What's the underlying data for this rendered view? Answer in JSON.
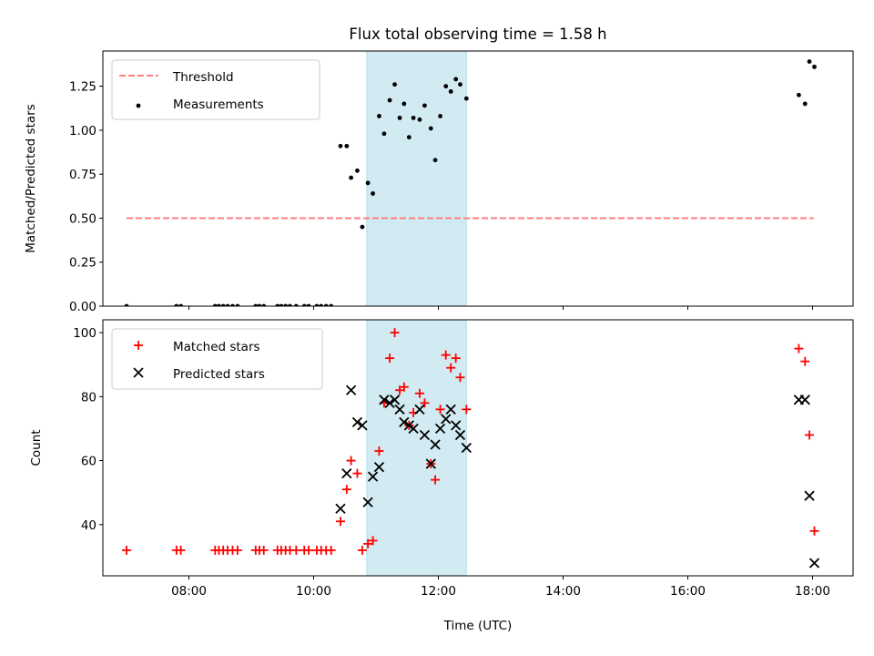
{
  "chart_data": [
    {
      "type": "scatter",
      "title": "Flux total observing time = 1.58 h",
      "xlabel": "",
      "ylabel": "Matched/Predicted stars",
      "xlim": [
        6.62,
        18.65
      ],
      "ylim": [
        0.0,
        1.45
      ],
      "yticks": [
        0.0,
        0.25,
        0.5,
        0.75,
        1.0,
        1.25
      ],
      "ytick_labels": [
        "0.00",
        "0.25",
        "0.50",
        "0.75",
        "1.00",
        "1.25"
      ],
      "xticks": [
        8,
        10,
        12,
        14,
        16,
        18
      ],
      "xtick_labels": [
        "",
        "",
        "",
        "",
        "",
        ""
      ],
      "shaded_region": {
        "x_start": 10.85,
        "x_end": 12.45,
        "color": "#add8e6"
      },
      "legend_placement": "upper left",
      "series": [
        {
          "name": "Threshold",
          "style": "dashed-line",
          "color": "#ff7f7f",
          "x": [
            7.0,
            18.02
          ],
          "y": [
            0.5,
            0.5
          ]
        },
        {
          "name": "Measurements",
          "style": "dot",
          "color": "#000000",
          "x": [
            7.0,
            7.8,
            7.87,
            8.42,
            8.48,
            8.55,
            8.62,
            8.7,
            8.78,
            9.07,
            9.13,
            9.2,
            9.42,
            9.48,
            9.55,
            9.62,
            9.72,
            9.85,
            9.92,
            10.05,
            10.12,
            10.2,
            10.28,
            10.43,
            10.53,
            10.6,
            10.7,
            10.78,
            10.87,
            10.95,
            11.05,
            11.13,
            11.22,
            11.3,
            11.38,
            11.45,
            11.53,
            11.6,
            11.7,
            11.78,
            11.88,
            11.95,
            12.03,
            12.12,
            12.2,
            12.28,
            12.35,
            12.45,
            17.78,
            17.88,
            17.95,
            18.03
          ],
          "y": [
            0.0,
            0.0,
            0.0,
            0.0,
            0.0,
            0.0,
            0.0,
            0.0,
            0.0,
            0.0,
            0.0,
            0.0,
            0.0,
            0.0,
            0.0,
            0.0,
            0.0,
            0.0,
            0.0,
            0.0,
            0.0,
            0.0,
            0.0,
            0.91,
            0.91,
            0.73,
            0.77,
            0.45,
            0.7,
            0.64,
            1.08,
            0.98,
            1.17,
            1.26,
            1.07,
            1.15,
            0.96,
            1.07,
            1.06,
            1.14,
            1.01,
            0.83,
            1.08,
            1.25,
            1.22,
            1.29,
            1.26,
            1.18,
            1.2,
            1.15,
            1.39,
            1.36
          ]
        }
      ]
    },
    {
      "type": "scatter",
      "title": "",
      "xlabel": "Time (UTC)",
      "ylabel": "Count",
      "xlim": [
        6.62,
        18.65
      ],
      "ylim": [
        24.0,
        104.0
      ],
      "yticks": [
        40,
        60,
        80,
        100
      ],
      "ytick_labels": [
        "40",
        "60",
        "80",
        "100"
      ],
      "xticks": [
        8,
        10,
        12,
        14,
        16,
        18
      ],
      "xtick_labels": [
        "08:00",
        "10:00",
        "12:00",
        "14:00",
        "16:00",
        "18:00"
      ],
      "shaded_region": {
        "x_start": 10.85,
        "x_end": 12.45,
        "color": "#add8e6"
      },
      "legend_placement": "upper left",
      "series": [
        {
          "name": "Matched stars",
          "marker": "plus",
          "color": "#ff0000",
          "x": [
            7.0,
            7.8,
            7.87,
            8.42,
            8.48,
            8.55,
            8.62,
            8.7,
            8.78,
            9.07,
            9.13,
            9.2,
            9.42,
            9.48,
            9.55,
            9.62,
            9.72,
            9.85,
            9.92,
            10.05,
            10.12,
            10.2,
            10.28,
            10.43,
            10.53,
            10.6,
            10.7,
            10.78,
            10.87,
            10.95,
            11.05,
            11.13,
            11.22,
            11.3,
            11.38,
            11.45,
            11.53,
            11.6,
            11.7,
            11.78,
            11.88,
            11.95,
            12.03,
            12.12,
            12.2,
            12.28,
            12.35,
            12.45,
            17.78,
            17.88,
            17.95,
            18.03
          ],
          "y": [
            32,
            32,
            32,
            32,
            32,
            32,
            32,
            32,
            32,
            32,
            32,
            32,
            32,
            32,
            32,
            32,
            32,
            32,
            32,
            32,
            32,
            32,
            32,
            41,
            51,
            60,
            56,
            32,
            34,
            35,
            63,
            78,
            92,
            100,
            82,
            83,
            71,
            75,
            81,
            78,
            59,
            54,
            76,
            93,
            89,
            92,
            86,
            76,
            95,
            91,
            68,
            38
          ]
        },
        {
          "name": "Predicted stars",
          "marker": "x",
          "color": "#000000",
          "x": [
            10.43,
            10.53,
            10.6,
            10.7,
            10.78,
            10.87,
            10.95,
            11.05,
            11.13,
            11.22,
            11.3,
            11.38,
            11.45,
            11.53,
            11.6,
            11.7,
            11.78,
            11.88,
            11.95,
            12.03,
            12.12,
            12.2,
            12.28,
            12.35,
            12.45,
            17.78,
            17.88,
            17.95,
            18.03
          ],
          "y": [
            45,
            56,
            82,
            72,
            71,
            47,
            55,
            58,
            79,
            78,
            79,
            76,
            72,
            71,
            70,
            76,
            68,
            59,
            65,
            70,
            73,
            76,
            71,
            68,
            64,
            79,
            79,
            49,
            28
          ]
        }
      ]
    }
  ]
}
